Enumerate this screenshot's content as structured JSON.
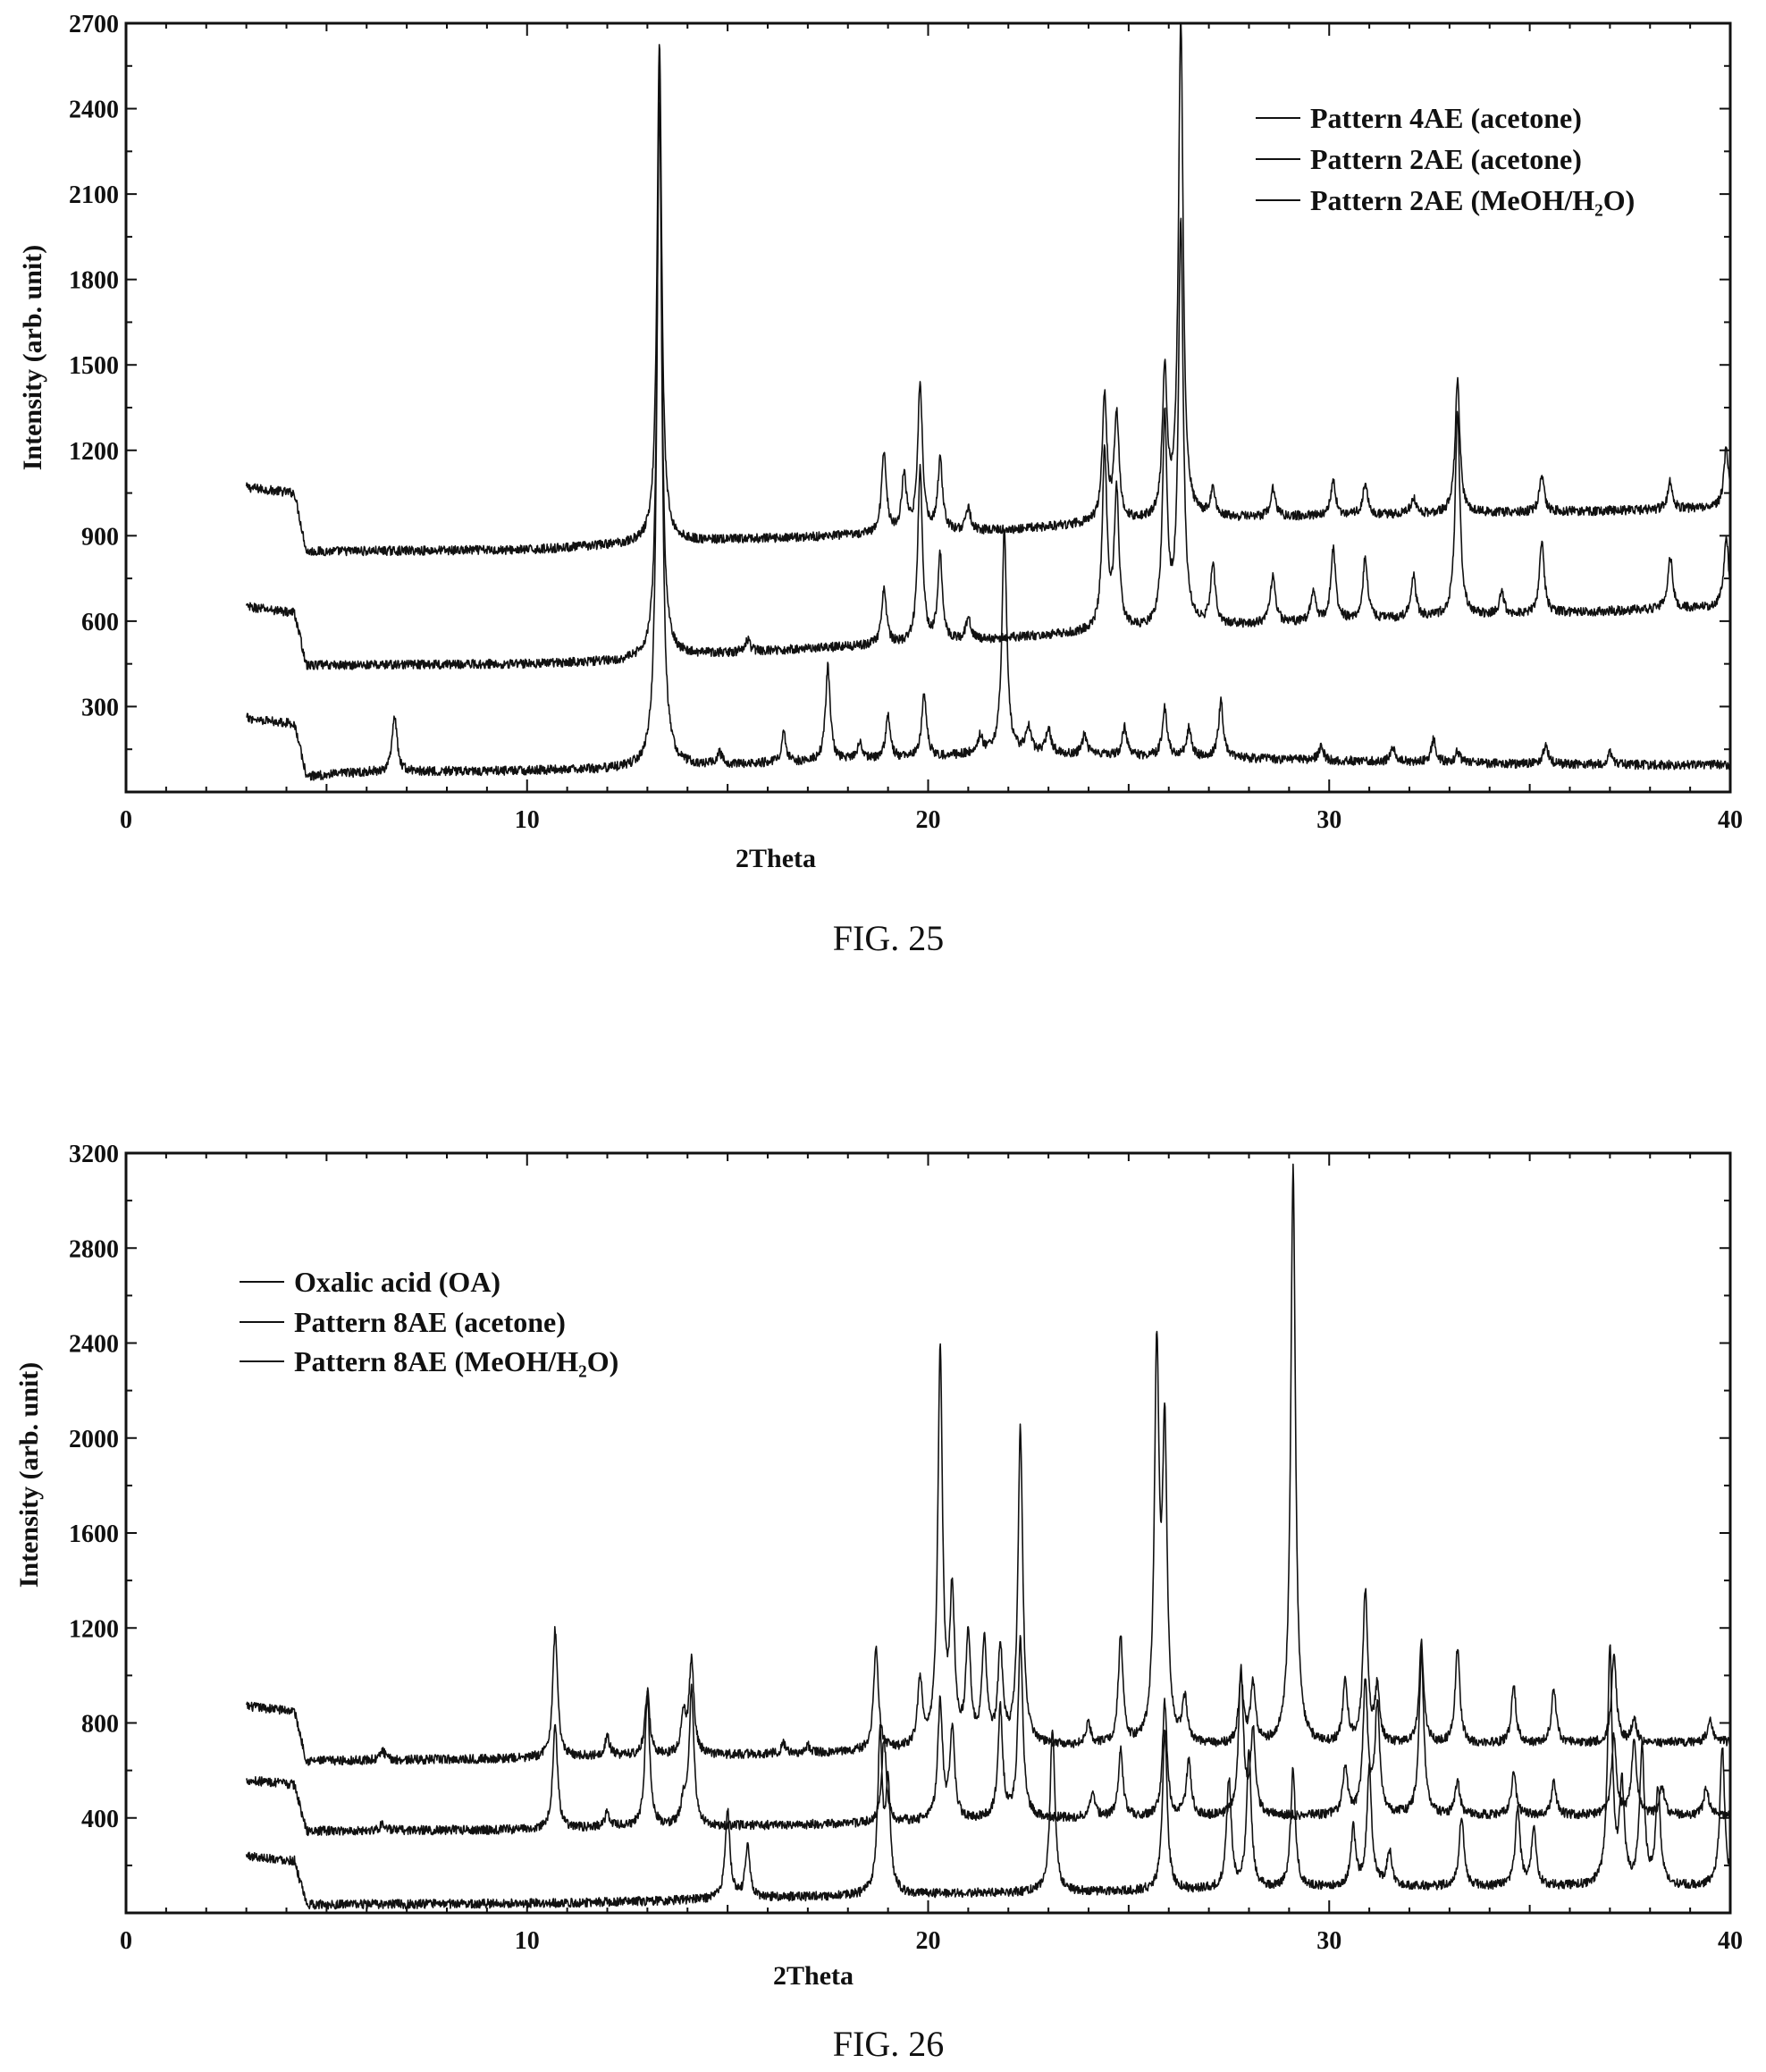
{
  "chart_data": [
    {
      "type": "line",
      "caption": "FIG. 25",
      "xlabel": "2Theta",
      "ylabel": "Intensity (arb. unit)",
      "xlim": [
        0,
        40
      ],
      "ylim": [
        0,
        2700
      ],
      "xticks": [
        0,
        10,
        20,
        30,
        40
      ],
      "yticks": [
        300,
        600,
        900,
        1200,
        1500,
        1800,
        2100,
        2400,
        2700
      ],
      "legend_position": "top-right",
      "series": [
        {
          "name": "Pattern 4AE (acetone)",
          "baseline": [
            [
              3,
              1070
            ],
            [
              4.2,
              1050
            ],
            [
              4.5,
              845
            ],
            [
              10,
              850
            ],
            [
              12.5,
              870
            ],
            [
              14,
              880
            ],
            [
              18,
              900
            ],
            [
              20,
              910
            ],
            [
              22,
              920
            ],
            [
              24,
              940
            ],
            [
              27,
              960
            ],
            [
              30,
              970
            ],
            [
              34,
              980
            ],
            [
              38,
              990
            ],
            [
              40,
              1000
            ]
          ],
          "peaks": [
            [
              13.3,
              1750
            ],
            [
              18.9,
              290
            ],
            [
              19.4,
              200
            ],
            [
              19.8,
              520
            ],
            [
              20.3,
              250
            ],
            [
              21.0,
              80
            ],
            [
              24.4,
              440
            ],
            [
              24.7,
              380
            ],
            [
              25.9,
              520
            ],
            [
              26.3,
              1750
            ],
            [
              27.1,
              100
            ],
            [
              28.6,
              100
            ],
            [
              30.1,
              120
            ],
            [
              30.9,
              110
            ],
            [
              32.1,
              60
            ],
            [
              33.2,
              470
            ],
            [
              35.3,
              130
            ],
            [
              38.5,
              100
            ],
            [
              39.9,
              210
            ]
          ]
        },
        {
          "name": "Pattern 2AE (acetone)",
          "baseline": [
            [
              3,
              650
            ],
            [
              4.2,
              630
            ],
            [
              4.5,
              445
            ],
            [
              10,
              450
            ],
            [
              12.5,
              460
            ],
            [
              14,
              480
            ],
            [
              18,
              510
            ],
            [
              20,
              520
            ],
            [
              22,
              540
            ],
            [
              24,
              560
            ],
            [
              27,
              580
            ],
            [
              30,
              600
            ],
            [
              34,
              620
            ],
            [
              38,
              640
            ],
            [
              40,
              650
            ]
          ],
          "peaks": [
            [
              13.3,
              1950
            ],
            [
              15.5,
              40
            ],
            [
              18.9,
              200
            ],
            [
              19.8,
              620
            ],
            [
              20.3,
              300
            ],
            [
              21.0,
              80
            ],
            [
              24.4,
              630
            ],
            [
              24.7,
              480
            ],
            [
              25.9,
              730
            ],
            [
              26.3,
              1420
            ],
            [
              27.1,
              210
            ],
            [
              28.6,
              180
            ],
            [
              29.6,
              100
            ],
            [
              30.1,
              250
            ],
            [
              30.9,
              220
            ],
            [
              32.1,
              150
            ],
            [
              33.2,
              720
            ],
            [
              34.3,
              80
            ],
            [
              35.3,
              250
            ],
            [
              38.5,
              190
            ],
            [
              39.9,
              250
            ]
          ]
        },
        {
          "name": "Pattern 2AE (MeOH/H2O)",
          "baseline": [
            [
              3,
              260
            ],
            [
              4.2,
              240
            ],
            [
              4.5,
              55
            ],
            [
              6,
              70
            ],
            [
              10,
              75
            ],
            [
              12.5,
              80
            ],
            [
              14,
              90
            ],
            [
              18,
              110
            ],
            [
              20,
              120
            ],
            [
              22,
              140
            ],
            [
              24,
              130
            ],
            [
              27,
              120
            ],
            [
              30,
              110
            ],
            [
              34,
              100
            ],
            [
              38,
              95
            ],
            [
              40,
              95
            ]
          ],
          "peaks": [
            [
              6.7,
              200
            ],
            [
              13.3,
              2500
            ],
            [
              14.8,
              40
            ],
            [
              16.4,
              100
            ],
            [
              17.5,
              330
            ],
            [
              18.3,
              60
            ],
            [
              19.0,
              150
            ],
            [
              19.9,
              230
            ],
            [
              21.3,
              60
            ],
            [
              21.9,
              790
            ],
            [
              22.5,
              90
            ],
            [
              23.0,
              90
            ],
            [
              23.9,
              70
            ],
            [
              24.9,
              100
            ],
            [
              25.9,
              170
            ],
            [
              26.5,
              100
            ],
            [
              27.3,
              200
            ],
            [
              29.8,
              50
            ],
            [
              31.6,
              50
            ],
            [
              32.6,
              80
            ],
            [
              33.2,
              40
            ],
            [
              35.4,
              70
            ],
            [
              37.0,
              40
            ]
          ]
        }
      ]
    },
    {
      "type": "line",
      "caption": "FIG. 26",
      "xlabel": "2Theta",
      "ylabel": "Intensity (arb. unit)",
      "xlim": [
        0,
        40
      ],
      "ylim": [
        0,
        3200
      ],
      "xticks": [
        0,
        10,
        20,
        30,
        40
      ],
      "yticks": [
        400,
        800,
        1200,
        1600,
        2000,
        2400,
        2800,
        3200
      ],
      "legend_position": "top-left",
      "series": [
        {
          "name": "Oxalic acid (OA)",
          "baseline": [
            [
              3,
              870
            ],
            [
              4.2,
              850
            ],
            [
              4.5,
              640
            ],
            [
              10,
              650
            ],
            [
              12,
              660
            ],
            [
              15,
              665
            ],
            [
              18,
              675
            ],
            [
              20,
              690
            ],
            [
              22,
              700
            ],
            [
              25,
              700
            ],
            [
              28,
              700
            ],
            [
              31,
              705
            ],
            [
              34,
              710
            ],
            [
              38,
              715
            ],
            [
              40,
              720
            ]
          ],
          "peaks": [
            [
              6.4,
              40
            ],
            [
              10.7,
              540
            ],
            [
              12.0,
              80
            ],
            [
              13.0,
              270
            ],
            [
              13.9,
              160
            ],
            [
              14.1,
              400
            ],
            [
              16.4,
              40
            ],
            [
              17.0,
              30
            ],
            [
              18.7,
              440
            ],
            [
              19.8,
              280
            ],
            [
              20.3,
              1650
            ],
            [
              20.6,
              620
            ],
            [
              21.0,
              460
            ],
            [
              21.4,
              440
            ],
            [
              21.8,
              400
            ],
            [
              22.3,
              1330
            ],
            [
              24.0,
              90
            ],
            [
              24.8,
              450
            ],
            [
              25.7,
              1620
            ],
            [
              25.9,
              1260
            ],
            [
              26.4,
              180
            ],
            [
              27.8,
              280
            ],
            [
              28.1,
              260
            ],
            [
              29.1,
              2430
            ],
            [
              30.4,
              260
            ],
            [
              30.9,
              640
            ],
            [
              31.2,
              230
            ],
            [
              32.3,
              420
            ],
            [
              33.2,
              400
            ],
            [
              34.6,
              240
            ],
            [
              35.6,
              230
            ],
            [
              37.1,
              380
            ],
            [
              37.6,
              100
            ],
            [
              39.5,
              100
            ]
          ]
        },
        {
          "name": "Pattern 8AE (acetone)",
          "baseline": [
            [
              3,
              560
            ],
            [
              4.2,
              540
            ],
            [
              4.5,
              345
            ],
            [
              10,
              350
            ],
            [
              12,
              360
            ],
            [
              15,
              365
            ],
            [
              18,
              375
            ],
            [
              20,
              385
            ],
            [
              22,
              395
            ],
            [
              25,
              400
            ],
            [
              28,
              405
            ],
            [
              31,
              410
            ],
            [
              34,
              410
            ],
            [
              38,
              410
            ],
            [
              40,
              410
            ]
          ],
          "peaks": [
            [
              6.4,
              30
            ],
            [
              10.7,
              440
            ],
            [
              12.0,
              60
            ],
            [
              13.0,
              560
            ],
            [
              13.9,
              100
            ],
            [
              14.1,
              580
            ],
            [
              18.9,
              350
            ],
            [
              20.3,
              500
            ],
            [
              20.6,
              380
            ],
            [
              21.8,
              460
            ],
            [
              22.3,
              760
            ],
            [
              24.1,
              120
            ],
            [
              24.8,
              280
            ],
            [
              25.9,
              480
            ],
            [
              26.5,
              240
            ],
            [
              27.8,
              620
            ],
            [
              28.1,
              350
            ],
            [
              30.4,
              200
            ],
            [
              30.9,
              560
            ],
            [
              31.2,
              450
            ],
            [
              32.3,
              680
            ],
            [
              33.2,
              140
            ],
            [
              34.6,
              180
            ],
            [
              35.6,
              140
            ],
            [
              37.1,
              340
            ],
            [
              37.6,
              320
            ],
            [
              38.3,
              120
            ],
            [
              39.4,
              120
            ]
          ]
        },
        {
          "name": "Pattern 8AE (MeOH/H2O)",
          "baseline": [
            [
              3,
              240
            ],
            [
              4.2,
              220
            ],
            [
              4.5,
              35
            ],
            [
              10,
              40
            ],
            [
              12,
              45
            ],
            [
              14.5,
              55
            ],
            [
              16,
              65
            ],
            [
              18,
              70
            ],
            [
              20,
              80
            ],
            [
              22,
              85
            ],
            [
              25,
              90
            ],
            [
              28,
              100
            ],
            [
              31,
              110
            ],
            [
              34,
              110
            ],
            [
              38,
              110
            ],
            [
              40,
              110
            ]
          ],
          "peaks": [
            [
              15.0,
              380
            ],
            [
              15.5,
              210
            ],
            [
              18.8,
              650
            ],
            [
              19.0,
              450
            ],
            [
              23.1,
              700
            ],
            [
              25.9,
              680
            ],
            [
              27.5,
              460
            ],
            [
              28.0,
              570
            ],
            [
              29.1,
              500
            ],
            [
              30.6,
              240
            ],
            [
              31.0,
              500
            ],
            [
              31.5,
              150
            ],
            [
              33.3,
              300
            ],
            [
              34.7,
              330
            ],
            [
              35.1,
              240
            ],
            [
              37.0,
              990
            ],
            [
              37.3,
              400
            ],
            [
              37.8,
              580
            ],
            [
              38.2,
              400
            ],
            [
              39.8,
              600
            ]
          ]
        }
      ]
    }
  ]
}
